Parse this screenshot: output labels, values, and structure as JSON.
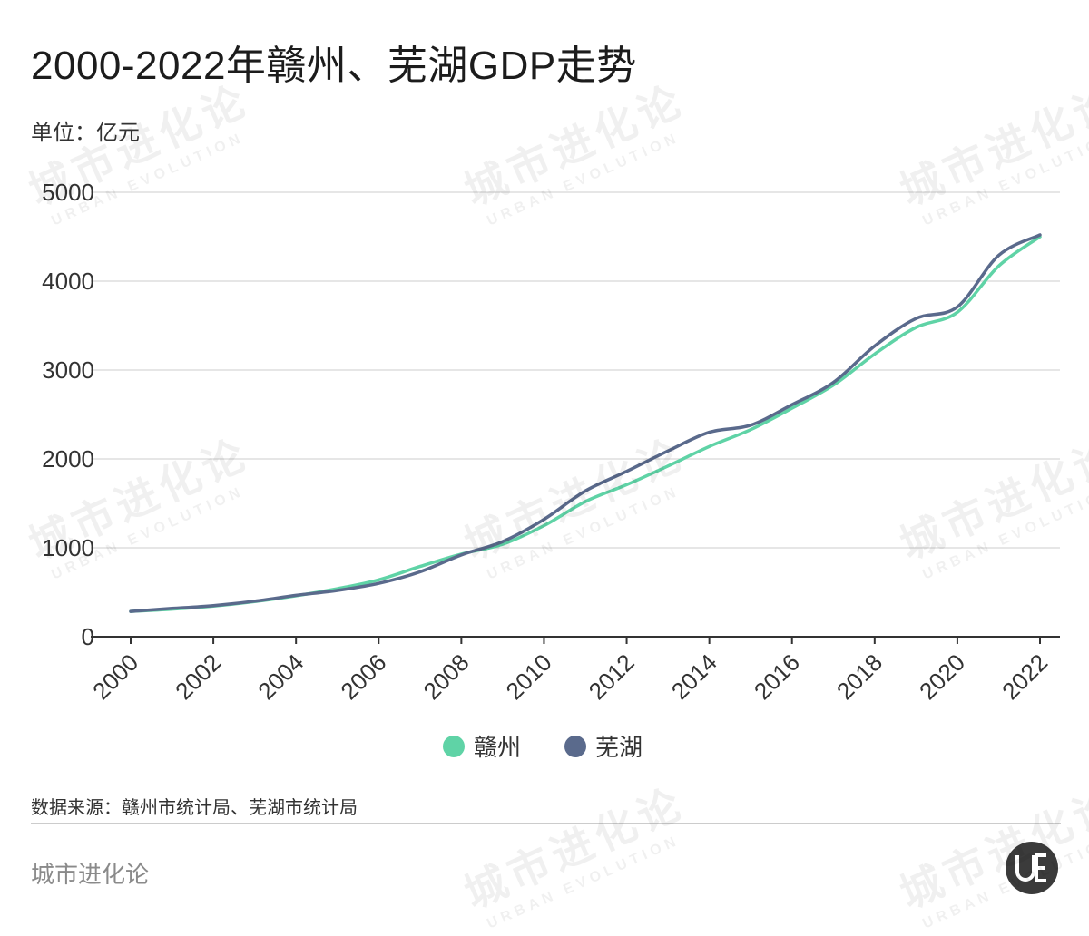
{
  "header": {
    "title": "2000-2022年赣州、芜湖GDP走势",
    "unit": "单位：亿元"
  },
  "footer": {
    "source": "数据来源：赣州市统计局、芜湖市统计局",
    "brand": "城市进化论",
    "watermark_cn": "城市进化论",
    "watermark_en": "URBAN EVOLUTION",
    "logo_text": "UE"
  },
  "colors": {
    "ganzhou": "#5fd3a6",
    "wuhu": "#5a6a8c",
    "grid": "#dddddd",
    "axis": "#333333"
  },
  "chart_data": {
    "type": "line",
    "x": [
      2000,
      2001,
      2002,
      2003,
      2004,
      2005,
      2006,
      2007,
      2008,
      2009,
      2010,
      2011,
      2012,
      2013,
      2014,
      2015,
      2016,
      2017,
      2018,
      2019,
      2020,
      2021,
      2022
    ],
    "x_tick_labels": [
      "2000",
      "2002",
      "2004",
      "2006",
      "2008",
      "2010",
      "2012",
      "2014",
      "2016",
      "2018",
      "2020",
      "2022"
    ],
    "ylim": [
      0,
      5000
    ],
    "y_ticks": [
      0,
      1000,
      2000,
      3000,
      4000,
      5000
    ],
    "grid": true,
    "legend_position": "bottom-center",
    "series": [
      {
        "name": "赣州",
        "color": "#5fd3a6",
        "values": [
          285,
          310,
          345,
          395,
          460,
          540,
          640,
          790,
          930,
          1040,
          1250,
          1520,
          1710,
          1920,
          2140,
          2330,
          2570,
          2830,
          3180,
          3480,
          3650,
          4170,
          4500
        ]
      },
      {
        "name": "芜湖",
        "color": "#5a6a8c",
        "values": [
          285,
          318,
          350,
          400,
          465,
          520,
          600,
          730,
          920,
          1070,
          1320,
          1640,
          1860,
          2090,
          2300,
          2380,
          2610,
          2860,
          3270,
          3580,
          3710,
          4290,
          4520
        ]
      }
    ]
  }
}
